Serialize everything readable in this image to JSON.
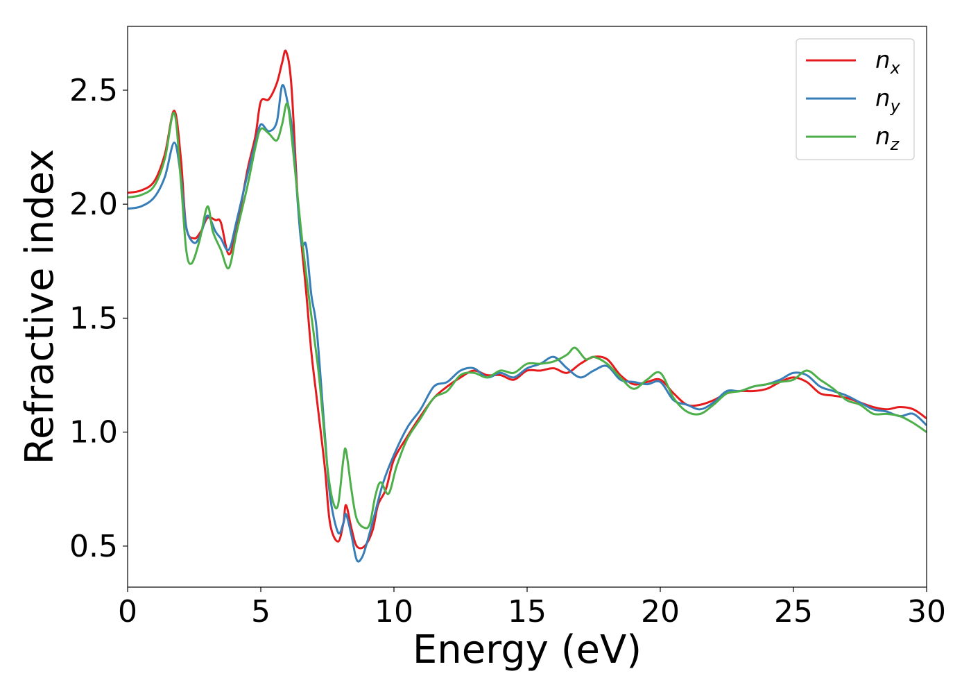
{
  "chart_data": {
    "type": "line",
    "title": "",
    "xlabel": "Energy (eV)",
    "ylabel": "Refractive index",
    "xlim": [
      0,
      30
    ],
    "ylim": [
      0.32,
      2.78
    ],
    "xticks": [
      0,
      5,
      10,
      15,
      20,
      25,
      30
    ],
    "xtick_labels": [
      "0",
      "5",
      "10",
      "15",
      "20",
      "25",
      "30"
    ],
    "yticks": [
      0.5,
      1.0,
      1.5,
      2.0,
      2.5
    ],
    "ytick_labels": [
      "0.5",
      "1.0",
      "1.5",
      "2.0",
      "2.5"
    ],
    "grid": false,
    "legend_position": "top-right",
    "series": [
      {
        "name": "n",
        "subscript": "x",
        "color": "#e41a1c",
        "points": [
          [
            0,
            2.05
          ],
          [
            0.5,
            2.06
          ],
          [
            1.0,
            2.1
          ],
          [
            1.4,
            2.22
          ],
          [
            1.75,
            2.41
          ],
          [
            2.0,
            2.2
          ],
          [
            2.2,
            1.9
          ],
          [
            2.5,
            1.85
          ],
          [
            2.75,
            1.88
          ],
          [
            3.0,
            1.94
          ],
          [
            3.3,
            1.93
          ],
          [
            3.5,
            1.92
          ],
          [
            3.8,
            1.78
          ],
          [
            4.1,
            1.9
          ],
          [
            4.5,
            2.15
          ],
          [
            4.8,
            2.3
          ],
          [
            5.0,
            2.45
          ],
          [
            5.3,
            2.46
          ],
          [
            5.6,
            2.53
          ],
          [
            5.8,
            2.62
          ],
          [
            5.95,
            2.67
          ],
          [
            6.15,
            2.52
          ],
          [
            6.4,
            2.0
          ],
          [
            6.7,
            1.62
          ],
          [
            6.9,
            1.35
          ],
          [
            7.1,
            1.15
          ],
          [
            7.4,
            0.85
          ],
          [
            7.6,
            0.6
          ],
          [
            7.9,
            0.52
          ],
          [
            8.1,
            0.6
          ],
          [
            8.2,
            0.68
          ],
          [
            8.4,
            0.58
          ],
          [
            8.6,
            0.5
          ],
          [
            8.9,
            0.5
          ],
          [
            9.2,
            0.57
          ],
          [
            9.4,
            0.68
          ],
          [
            9.7,
            0.75
          ],
          [
            10.0,
            0.88
          ],
          [
            10.5,
            0.98
          ],
          [
            11.0,
            1.07
          ],
          [
            11.5,
            1.15
          ],
          [
            12.0,
            1.2
          ],
          [
            12.5,
            1.24
          ],
          [
            13.0,
            1.27
          ],
          [
            13.5,
            1.25
          ],
          [
            14.0,
            1.25
          ],
          [
            14.5,
            1.23
          ],
          [
            15.0,
            1.27
          ],
          [
            15.5,
            1.27
          ],
          [
            16.0,
            1.28
          ],
          [
            16.5,
            1.26
          ],
          [
            17.0,
            1.3
          ],
          [
            17.5,
            1.33
          ],
          [
            18.0,
            1.32
          ],
          [
            18.5,
            1.25
          ],
          [
            19.0,
            1.21
          ],
          [
            19.5,
            1.22
          ],
          [
            20.0,
            1.23
          ],
          [
            20.5,
            1.17
          ],
          [
            21.0,
            1.12
          ],
          [
            21.5,
            1.12
          ],
          [
            22.0,
            1.14
          ],
          [
            22.5,
            1.17
          ],
          [
            23.0,
            1.18
          ],
          [
            23.5,
            1.18
          ],
          [
            24.0,
            1.19
          ],
          [
            24.5,
            1.22
          ],
          [
            25.0,
            1.24
          ],
          [
            25.5,
            1.22
          ],
          [
            26.0,
            1.17
          ],
          [
            26.5,
            1.16
          ],
          [
            27.0,
            1.15
          ],
          [
            27.5,
            1.13
          ],
          [
            28.0,
            1.11
          ],
          [
            28.5,
            1.1
          ],
          [
            29.0,
            1.11
          ],
          [
            29.5,
            1.1
          ],
          [
            30.0,
            1.06
          ]
        ]
      },
      {
        "name": "n",
        "subscript": "y",
        "color": "#377eb8",
        "points": [
          [
            0,
            1.98
          ],
          [
            0.5,
            1.99
          ],
          [
            1.0,
            2.03
          ],
          [
            1.4,
            2.12
          ],
          [
            1.75,
            2.27
          ],
          [
            2.0,
            2.12
          ],
          [
            2.2,
            1.9
          ],
          [
            2.5,
            1.83
          ],
          [
            2.75,
            1.87
          ],
          [
            3.0,
            1.95
          ],
          [
            3.3,
            1.88
          ],
          [
            3.5,
            1.85
          ],
          [
            3.8,
            1.8
          ],
          [
            4.1,
            1.93
          ],
          [
            4.5,
            2.13
          ],
          [
            4.8,
            2.27
          ],
          [
            5.0,
            2.35
          ],
          [
            5.3,
            2.32
          ],
          [
            5.6,
            2.36
          ],
          [
            5.8,
            2.52
          ],
          [
            6.0,
            2.45
          ],
          [
            6.2,
            2.3
          ],
          [
            6.5,
            1.85
          ],
          [
            6.7,
            1.82
          ],
          [
            6.9,
            1.6
          ],
          [
            7.1,
            1.45
          ],
          [
            7.4,
            1.0
          ],
          [
            7.6,
            0.72
          ],
          [
            7.9,
            0.56
          ],
          [
            8.1,
            0.6
          ],
          [
            8.2,
            0.64
          ],
          [
            8.4,
            0.55
          ],
          [
            8.6,
            0.44
          ],
          [
            8.8,
            0.45
          ],
          [
            9.0,
            0.52
          ],
          [
            9.3,
            0.65
          ],
          [
            9.6,
            0.78
          ],
          [
            10.0,
            0.9
          ],
          [
            10.5,
            1.02
          ],
          [
            11.0,
            1.1
          ],
          [
            11.5,
            1.2
          ],
          [
            12.0,
            1.22
          ],
          [
            12.5,
            1.27
          ],
          [
            13.0,
            1.28
          ],
          [
            13.5,
            1.24
          ],
          [
            14.0,
            1.26
          ],
          [
            14.5,
            1.24
          ],
          [
            15.0,
            1.28
          ],
          [
            15.5,
            1.3
          ],
          [
            16.0,
            1.33
          ],
          [
            16.5,
            1.28
          ],
          [
            17.0,
            1.24
          ],
          [
            17.5,
            1.27
          ],
          [
            18.0,
            1.29
          ],
          [
            18.5,
            1.23
          ],
          [
            19.0,
            1.22
          ],
          [
            19.5,
            1.21
          ],
          [
            20.0,
            1.22
          ],
          [
            20.5,
            1.14
          ],
          [
            21.0,
            1.12
          ],
          [
            21.5,
            1.1
          ],
          [
            22.0,
            1.13
          ],
          [
            22.5,
            1.18
          ],
          [
            23.0,
            1.18
          ],
          [
            23.5,
            1.2
          ],
          [
            24.0,
            1.21
          ],
          [
            24.5,
            1.23
          ],
          [
            25.0,
            1.26
          ],
          [
            25.5,
            1.25
          ],
          [
            26.0,
            1.2
          ],
          [
            26.5,
            1.18
          ],
          [
            27.0,
            1.16
          ],
          [
            27.5,
            1.13
          ],
          [
            28.0,
            1.1
          ],
          [
            28.5,
            1.09
          ],
          [
            29.0,
            1.07
          ],
          [
            29.5,
            1.08
          ],
          [
            30.0,
            1.03
          ]
        ]
      },
      {
        "name": "n",
        "subscript": "z",
        "color": "#4daf4a",
        "points": [
          [
            0,
            2.03
          ],
          [
            0.5,
            2.04
          ],
          [
            1.0,
            2.08
          ],
          [
            1.4,
            2.2
          ],
          [
            1.75,
            2.4
          ],
          [
            2.0,
            2.1
          ],
          [
            2.2,
            1.8
          ],
          [
            2.4,
            1.74
          ],
          [
            2.7,
            1.84
          ],
          [
            3.0,
            1.99
          ],
          [
            3.2,
            1.88
          ],
          [
            3.5,
            1.8
          ],
          [
            3.8,
            1.72
          ],
          [
            4.1,
            1.88
          ],
          [
            4.5,
            2.08
          ],
          [
            4.8,
            2.25
          ],
          [
            5.0,
            2.33
          ],
          [
            5.3,
            2.31
          ],
          [
            5.6,
            2.28
          ],
          [
            5.8,
            2.35
          ],
          [
            6.0,
            2.44
          ],
          [
            6.2,
            2.25
          ],
          [
            6.5,
            1.9
          ],
          [
            6.8,
            1.6
          ],
          [
            7.0,
            1.42
          ],
          [
            7.2,
            1.23
          ],
          [
            7.5,
            0.85
          ],
          [
            7.7,
            0.7
          ],
          [
            7.9,
            0.68
          ],
          [
            8.1,
            0.88
          ],
          [
            8.2,
            0.92
          ],
          [
            8.4,
            0.75
          ],
          [
            8.6,
            0.62
          ],
          [
            8.9,
            0.58
          ],
          [
            9.1,
            0.6
          ],
          [
            9.3,
            0.72
          ],
          [
            9.5,
            0.78
          ],
          [
            9.8,
            0.73
          ],
          [
            10.1,
            0.85
          ],
          [
            10.5,
            0.97
          ],
          [
            11.0,
            1.06
          ],
          [
            11.5,
            1.15
          ],
          [
            12.0,
            1.18
          ],
          [
            12.5,
            1.25
          ],
          [
            13.0,
            1.26
          ],
          [
            13.5,
            1.24
          ],
          [
            14.0,
            1.27
          ],
          [
            14.5,
            1.26
          ],
          [
            15.0,
            1.3
          ],
          [
            15.5,
            1.3
          ],
          [
            16.0,
            1.31
          ],
          [
            16.5,
            1.34
          ],
          [
            16.8,
            1.37
          ],
          [
            17.2,
            1.32
          ],
          [
            17.5,
            1.33
          ],
          [
            18.0,
            1.3
          ],
          [
            18.5,
            1.24
          ],
          [
            19.0,
            1.19
          ],
          [
            19.5,
            1.23
          ],
          [
            20.0,
            1.26
          ],
          [
            20.5,
            1.15
          ],
          [
            21.0,
            1.09
          ],
          [
            21.5,
            1.08
          ],
          [
            22.0,
            1.12
          ],
          [
            22.5,
            1.17
          ],
          [
            23.0,
            1.18
          ],
          [
            23.5,
            1.2
          ],
          [
            24.0,
            1.21
          ],
          [
            24.5,
            1.22
          ],
          [
            25.0,
            1.23
          ],
          [
            25.5,
            1.27
          ],
          [
            26.0,
            1.23
          ],
          [
            26.5,
            1.19
          ],
          [
            27.0,
            1.14
          ],
          [
            27.5,
            1.12
          ],
          [
            28.0,
            1.08
          ],
          [
            28.5,
            1.08
          ],
          [
            29.0,
            1.07
          ],
          [
            29.5,
            1.04
          ],
          [
            30.0,
            1.0
          ]
        ]
      }
    ]
  }
}
